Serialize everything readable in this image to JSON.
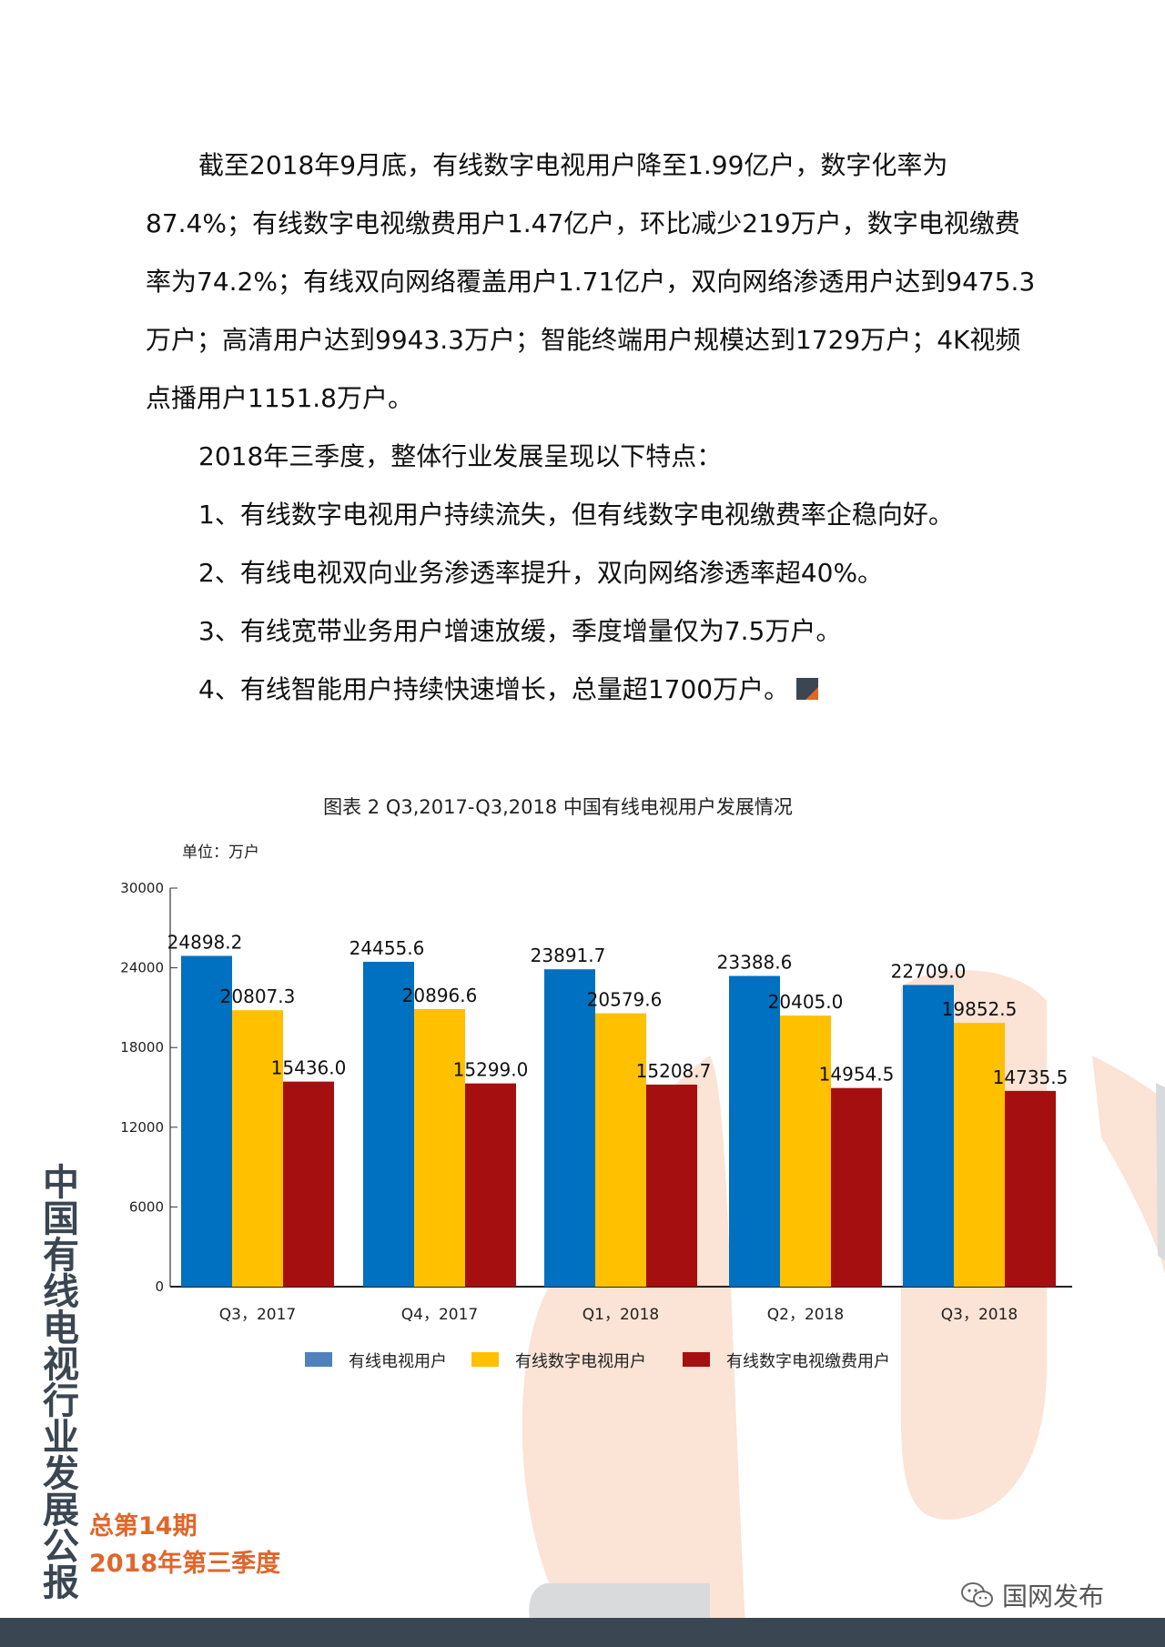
{
  "article": {
    "paragraph1": "截至2018年9月底，有线数字电视用户降至1.99亿户，数字化率为87.4%；有线数字电视缴费用户1.47亿户，环比减少219万户，数字电视缴费率为74.2%；有线双向网络覆盖用户1.71亿户，双向网络渗透用户达到9475.3万户；高清用户达到9943.3万户；智能终端用户规模达到1729万户；4K视频点播用户1151.8万户。",
    "paragraph2": "2018年三季度，整体行业发展呈现以下特点：",
    "points": [
      "1、有线数字电视用户持续流失，但有线数字电视缴费率企稳向好。",
      "2、有线电视双向业务渗透率提升，双向网络渗透率超40%。",
      "3、有线宽带业务用户增速放缓，季度增量仅为7.5万户。",
      "4、有线智能用户持续快速增长，总量超1700万户。"
    ]
  },
  "chart_data": {
    "type": "bar",
    "title": "图表 2 Q3,2017-Q3,2018  中国有线电视用户发展情况",
    "unit_label": "单位：万户",
    "categories": [
      "Q3，2017",
      "Q4，2017",
      "Q1，2018",
      "Q2，2018",
      "Q3，2018"
    ],
    "series": [
      {
        "name": "有线电视用户",
        "color": "#0070c0",
        "legend_color": "#4f81bd",
        "values": [
          24898.2,
          24455.6,
          23891.7,
          23388.6,
          22709.0
        ],
        "labels": [
          "24898.2",
          "24455.6",
          "23891.7",
          "23388.6",
          "22709.0"
        ]
      },
      {
        "name": "有线数字电视用户",
        "color": "#ffc000",
        "legend_color": "#ffc000",
        "values": [
          20807.3,
          20896.6,
          20579.6,
          20405.0,
          19852.5
        ],
        "labels": [
          "20807.3",
          "20896.6",
          "20579.6",
          "20405.0",
          "19852.5"
        ]
      },
      {
        "name": "有线数字电视缴费用户",
        "color": "#a50f0f",
        "legend_color": "#a50f0f",
        "values": [
          15436.0,
          15299.0,
          15208.7,
          14954.5,
          14735.5
        ],
        "labels": [
          "15436.0",
          "15299.0",
          "15208.7",
          "14954.5",
          "14735.5"
        ]
      }
    ],
    "y_ticks": [
      {
        "label": "30000",
        "value": 30000
      },
      {
        "label": "24000",
        "value": 24000
      },
      {
        "label": "18000",
        "value": 18000
      },
      {
        "label": "12000",
        "value": 12000
      },
      {
        "label": "6000",
        "value": 6000
      },
      {
        "label": "0",
        "value": 0
      }
    ],
    "ylim": [
      0,
      30000
    ],
    "grid": false,
    "legend": "bottom"
  },
  "sidebar": {
    "vertical_title": "中国有线电视行业发展公报",
    "issue_line1": "总第14期",
    "issue_line2": "2018年第三季度"
  },
  "watermark": {
    "text": "国网发布"
  },
  "colors": {
    "accent_orange": "#e0662a",
    "dark_slate": "#3a4652",
    "deco_peach": "#fbe3d5",
    "deco_gray": "#d9dadc"
  }
}
